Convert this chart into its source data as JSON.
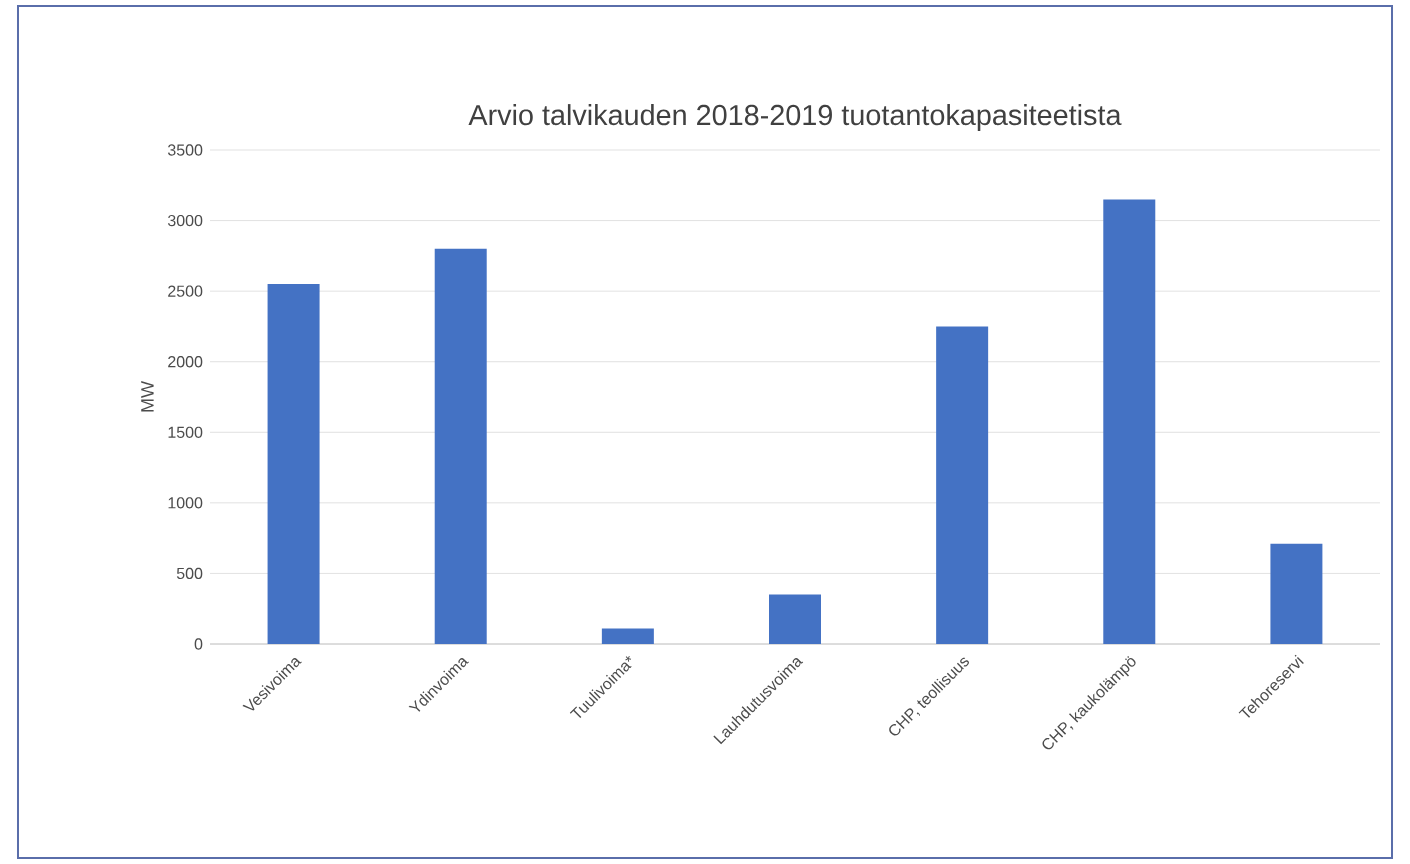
{
  "chart_data": {
    "type": "bar",
    "title": "Arvio talvikauden 2018-2019 tuotantokapasiteetista",
    "ylabel": "MW",
    "categories": [
      "Vesivoima",
      "Ydinvoima",
      "Tuulivoima*",
      "Lauhdutusvoima",
      "CHP, teollisuus",
      "CHP, kaukolämpö",
      "Tehoreservi"
    ],
    "values": [
      2550,
      2800,
      110,
      350,
      2250,
      3150,
      710
    ],
    "color": "#4472c4",
    "ylim": [
      0,
      3500
    ],
    "yticks": [
      0,
      500,
      1000,
      1500,
      2000,
      2500,
      3000,
      3500
    ],
    "grid": "y"
  }
}
